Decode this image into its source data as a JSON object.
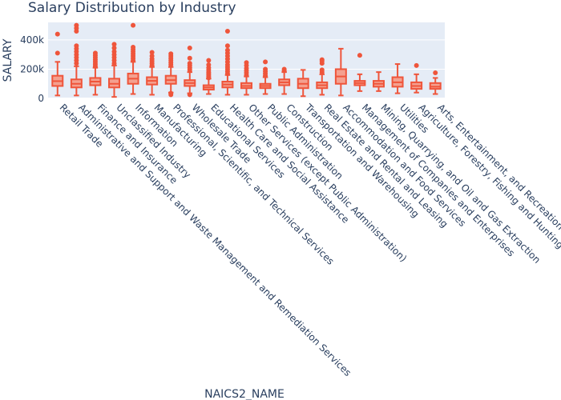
{
  "chart_data": {
    "type": "box",
    "title": "Salary Distribution by Industry",
    "xlabel": "NAICS2_NAME",
    "ylabel": "SALARY",
    "ylim": [
      0,
      520000
    ],
    "y_ticks": [
      0,
      200000,
      400000
    ],
    "y_tick_labels": [
      "0",
      "200k",
      "400k"
    ],
    "grid": true,
    "colors": {
      "box": "#ef553b",
      "box_fill": "#f4a08f",
      "plot_bg": "#e5ecf6",
      "grid": "#ffffff",
      "text": "#2a3f5f"
    },
    "categories": [
      "Retail Trade",
      "Administrative and Support and Waste Management and Remediation Services",
      "Finance and Insurance",
      "Unclassified Industry",
      "Information",
      "Manufacturing",
      "Professional, Scientific, and Technical Services",
      "Wholesale Trade",
      "Educational Services",
      "Health Care and Social Assistance",
      "Other Services (except Public Administration)",
      "Public Administration",
      "Construction",
      "Transportation and Warehousing",
      "Real Estate and Rental and Leasing",
      "Accommodation and Food Services",
      "Management of Companies and Enterprises",
      "Mining, Quarrying, and Oil and Gas Extraction",
      "Utilities",
      "Agriculture, Forestry, Fishing and Hunting",
      "Arts, Entertainment, and Recreation"
    ],
    "boxes": [
      {
        "min": 20000,
        "q1": 85000,
        "median": 118000,
        "q3": 155000,
        "max": 250000,
        "outliers": [
          310000,
          440000
        ]
      },
      {
        "min": 20000,
        "q1": 75000,
        "median": 100000,
        "q3": 130000,
        "max": 220000,
        "outliers": [
          240000,
          260000,
          280000,
          300000,
          320000,
          340000,
          360000,
          460000,
          480000,
          500000
        ]
      },
      {
        "min": 25000,
        "q1": 90000,
        "median": 115000,
        "q3": 140000,
        "max": 210000,
        "outliers": [
          220000,
          235000,
          250000,
          265000,
          280000,
          295000,
          310000
        ]
      },
      {
        "min": 10000,
        "q1": 75000,
        "median": 100000,
        "q3": 135000,
        "max": 225000,
        "outliers": [
          240000,
          260000,
          280000,
          300000,
          320000,
          345000,
          370000
        ]
      },
      {
        "min": 30000,
        "q1": 100000,
        "median": 135000,
        "q3": 170000,
        "max": 250000,
        "outliers": [
          260000,
          275000,
          290000,
          305000,
          320000,
          335000,
          350000,
          500000
        ]
      },
      {
        "min": 25000,
        "q1": 95000,
        "median": 120000,
        "q3": 145000,
        "max": 215000,
        "outliers": [
          225000,
          240000,
          255000,
          270000,
          290000,
          315000
        ]
      },
      {
        "min": 40000,
        "q1": 100000,
        "median": 125000,
        "q3": 155000,
        "max": 215000,
        "outliers": [
          25000,
          35000,
          230000,
          245000,
          260000,
          275000,
          290000,
          305000
        ]
      },
      {
        "min": 35000,
        "q1": 85000,
        "median": 105000,
        "q3": 125000,
        "max": 180000,
        "outliers": [
          25000,
          195000,
          210000,
          225000,
          240000,
          275000,
          345000
        ]
      },
      {
        "min": 30000,
        "q1": 60000,
        "median": 75000,
        "q3": 90000,
        "max": 135000,
        "outliers": [
          140000,
          150000,
          160000,
          170000,
          180000,
          195000,
          210000,
          230000,
          260000
        ]
      },
      {
        "min": 25000,
        "q1": 75000,
        "median": 95000,
        "q3": 115000,
        "max": 160000,
        "outliers": [
          170000,
          185000,
          200000,
          215000,
          230000,
          250000,
          270000,
          290000,
          310000,
          330000,
          360000,
          460000
        ]
      },
      {
        "min": 25000,
        "q1": 70000,
        "median": 85000,
        "q3": 105000,
        "max": 150000,
        "outliers": [
          160000,
          175000,
          190000,
          205000,
          225000,
          245000
        ]
      },
      {
        "min": 30000,
        "q1": 70000,
        "median": 85000,
        "q3": 100000,
        "max": 145000,
        "outliers": [
          155000,
          170000,
          185000,
          200000,
          250000
        ]
      },
      {
        "min": 30000,
        "q1": 90000,
        "median": 110000,
        "q3": 130000,
        "max": 180000,
        "outliers": [
          190000,
          200000
        ]
      },
      {
        "min": 15000,
        "q1": 70000,
        "median": 100000,
        "q3": 135000,
        "max": 195000,
        "outliers": []
      },
      {
        "min": 25000,
        "q1": 70000,
        "median": 90000,
        "q3": 110000,
        "max": 165000,
        "outliers": [
          180000,
          195000,
          240000,
          255000,
          265000
        ]
      },
      {
        "min": 20000,
        "q1": 100000,
        "median": 150000,
        "q3": 200000,
        "max": 340000,
        "outliers": []
      },
      {
        "min": 50000,
        "q1": 90000,
        "median": 105000,
        "q3": 120000,
        "max": 165000,
        "outliers": [
          295000
        ]
      },
      {
        "min": 50000,
        "q1": 80000,
        "median": 100000,
        "q3": 120000,
        "max": 180000,
        "outliers": []
      },
      {
        "min": 35000,
        "q1": 80000,
        "median": 110000,
        "q3": 145000,
        "max": 235000,
        "outliers": []
      },
      {
        "min": 40000,
        "q1": 65000,
        "median": 85000,
        "q3": 110000,
        "max": 165000,
        "outliers": [
          225000
        ]
      },
      {
        "min": 30000,
        "q1": 65000,
        "median": 80000,
        "q3": 105000,
        "max": 140000,
        "outliers": [
          175000
        ]
      }
    ]
  }
}
